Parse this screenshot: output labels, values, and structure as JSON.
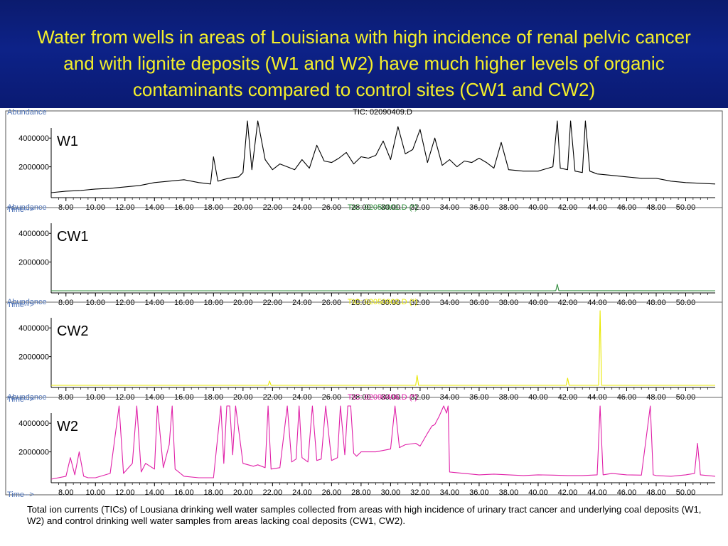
{
  "header": {
    "title": "Water from wells in areas of Louisiana with high incidence of renal pelvic cancer and with lignite deposits (W1 and W2) have much higher levels of organic contaminants compared to control sites (CW1 and CW2)",
    "background_color": "#0d1f84",
    "title_color": "#f4ef2a"
  },
  "caption": "Total ion currents (TICs) of Lousiana drinking well water samples collected from areas with high incidence of urinary tract cancer and underlying  coal deposits (W1, W2) and control  drinking well water samples from areas lacking coal deposits (CW1, CW2).",
  "chart_data": [
    {
      "type": "line",
      "panel_label": "W1",
      "file_label": "TIC: 02090409.D",
      "color": "#000000",
      "ylabel": "Abundance",
      "xlabel": "Time-->",
      "yticks": [
        "2000000",
        "4000000"
      ],
      "xticks": [
        "8.00",
        "10.00",
        "12.00",
        "14.00",
        "16.00",
        "18.00",
        "20.00",
        "22.00",
        "24.00",
        "26.00",
        "28.00",
        "30.00",
        "32.00",
        "34.00",
        "36.00",
        "38.00",
        "40.00",
        "42.00",
        "44.00",
        "46.00",
        "48.00",
        "50.00"
      ],
      "xlim": [
        7.0,
        52.0
      ],
      "ylim": [
        0,
        5200000
      ],
      "x": [
        7.0,
        8.0,
        9.0,
        10.0,
        11.0,
        12.0,
        13.0,
        14.0,
        15.0,
        16.0,
        17.0,
        17.8,
        18.0,
        18.3,
        19.0,
        19.7,
        20.0,
        20.3,
        20.6,
        21.0,
        21.5,
        22.0,
        22.5,
        23.0,
        23.5,
        24.0,
        24.5,
        25.0,
        25.5,
        26.0,
        26.5,
        27.0,
        27.5,
        28.0,
        28.5,
        29.0,
        29.5,
        30.0,
        30.5,
        31.0,
        31.5,
        32.0,
        32.5,
        33.0,
        33.5,
        34.0,
        34.5,
        35.0,
        35.5,
        36.0,
        36.5,
        37.0,
        37.5,
        38.0,
        39.0,
        40.0,
        41.0,
        41.3,
        41.5,
        42.0,
        42.2,
        42.5,
        43.0,
        43.2,
        43.5,
        44.0,
        45.0,
        46.0,
        47.0,
        48.0,
        49.0,
        50.0,
        51.0,
        52.0
      ],
      "y": [
        200000,
        300000,
        350000,
        450000,
        500000,
        600000,
        700000,
        900000,
        1000000,
        1100000,
        900000,
        800000,
        2700000,
        1000000,
        1200000,
        1300000,
        1600000,
        5200000,
        1800000,
        5200000,
        2500000,
        1800000,
        2200000,
        2000000,
        1800000,
        2500000,
        1900000,
        3500000,
        2400000,
        2300000,
        2600000,
        3000000,
        2200000,
        2700000,
        2600000,
        2800000,
        3800000,
        2500000,
        4800000,
        2900000,
        3200000,
        4600000,
        2300000,
        4000000,
        2100000,
        2500000,
        2000000,
        2400000,
        2300000,
        2600000,
        2300000,
        1900000,
        3700000,
        1800000,
        1700000,
        1700000,
        2000000,
        5200000,
        1900000,
        1800000,
        5200000,
        1700000,
        1600000,
        5200000,
        1700000,
        1500000,
        1400000,
        1300000,
        1200000,
        1200000,
        1000000,
        900000,
        850000,
        800000
      ]
    },
    {
      "type": "line",
      "panel_label": "CW1",
      "file_label": "TIC: 02050901.D (*)",
      "color": "#2e8b3a",
      "ylabel": "Abundance",
      "xlabel": "Time-->",
      "yticks": [
        "2000000",
        "4000000"
      ],
      "xticks": [
        "8.00",
        "10.00",
        "12.00",
        "14.00",
        "16.00",
        "18.00",
        "20.00",
        "22.00",
        "24.00",
        "26.00",
        "28.00",
        "30.00",
        "32.00",
        "34.00",
        "36.00",
        "38.00",
        "40.00",
        "42.00",
        "44.00",
        "46.00",
        "48.00",
        "50.00"
      ],
      "xlim": [
        7.0,
        52.0
      ],
      "ylim": [
        0,
        5200000
      ],
      "x": [
        7.0,
        41.0,
        41.2,
        41.3,
        41.4,
        52.0
      ],
      "y": [
        0,
        0,
        10000,
        450000,
        10000,
        0
      ]
    },
    {
      "type": "line",
      "panel_label": "CW2",
      "file_label": "TIC: 02050902.D (*)",
      "color": "#e8e800",
      "ylabel": "Abundance",
      "xlabel": "Time-->",
      "yticks": [
        "2000000",
        "4000000"
      ],
      "xticks": [
        "8.00",
        "10.00",
        "12.00",
        "14.00",
        "16.00",
        "18.00",
        "20.00",
        "22.00",
        "24.00",
        "26.00",
        "28.00",
        "30.00",
        "32.00",
        "34.00",
        "36.00",
        "38.00",
        "40.00",
        "42.00",
        "44.00",
        "46.00",
        "48.00",
        "50.00"
      ],
      "xlim": [
        7.0,
        52.0
      ],
      "ylim": [
        0,
        5200000
      ],
      "x": [
        7.0,
        21.7,
        21.8,
        21.9,
        31.7,
        31.8,
        31.9,
        41.9,
        42.0,
        42.1,
        44.1,
        44.2,
        44.3,
        52.0
      ],
      "y": [
        0,
        0,
        300000,
        0,
        0,
        700000,
        0,
        0,
        500000,
        0,
        0,
        5800000,
        0,
        0
      ]
    },
    {
      "type": "line",
      "panel_label": "W2",
      "file_label": "TIC: 02090406.D (*)",
      "color": "#e020a8",
      "ylabel": "Abundance",
      "xlabel": "Time-->",
      "yticks": [
        "2000000",
        "4000000"
      ],
      "xticks": [
        "8.00",
        "10.00",
        "12.00",
        "14.00",
        "16.00",
        "18.00",
        "20.00",
        "22.00",
        "24.00",
        "26.00",
        "28.00",
        "30.00",
        "32.00",
        "34.00",
        "36.00",
        "38.00",
        "40.00",
        "42.00",
        "44.00",
        "46.00",
        "48.00",
        "50.00"
      ],
      "xlim": [
        7.0,
        52.0
      ],
      "ylim": [
        0,
        5200000
      ],
      "x": [
        7.0,
        8.0,
        8.3,
        8.6,
        8.9,
        9.2,
        9.5,
        10.0,
        11.0,
        11.6,
        11.9,
        12.5,
        12.8,
        13.1,
        13.4,
        14.0,
        14.2,
        14.6,
        15.0,
        15.2,
        15.4,
        16.0,
        17.0,
        18.0,
        18.5,
        18.7,
        18.9,
        19.1,
        19.3,
        19.5,
        20.0,
        20.7,
        21.0,
        21.5,
        21.7,
        21.9,
        22.5,
        23.0,
        23.3,
        23.6,
        23.8,
        24.0,
        24.4,
        24.7,
        25.0,
        25.3,
        25.6,
        26.0,
        26.4,
        26.6,
        26.9,
        27.1,
        27.3,
        27.5,
        27.7,
        28.0,
        29.0,
        30.0,
        30.3,
        30.6,
        31.0,
        31.7,
        32.0,
        32.5,
        32.8,
        33.0,
        33.3,
        33.6,
        33.8,
        33.9,
        34.0,
        35.0,
        36.0,
        37.0,
        38.0,
        39.0,
        40.0,
        41.0,
        42.0,
        43.0,
        44.0,
        44.2,
        44.4,
        45.0,
        46.0,
        47.0,
        47.6,
        47.8,
        48.0,
        49.0,
        50.0,
        50.6,
        50.8,
        51.0,
        52.0
      ],
      "y": [
        100000,
        300000,
        1600000,
        400000,
        2000000,
        300000,
        200000,
        200000,
        500000,
        5200000,
        500000,
        1200000,
        5200000,
        600000,
        1200000,
        800000,
        5200000,
        900000,
        2500000,
        5200000,
        800000,
        300000,
        200000,
        200000,
        5200000,
        1200000,
        5200000,
        5200000,
        1800000,
        5200000,
        1200000,
        1000000,
        1100000,
        900000,
        5200000,
        800000,
        900000,
        5200000,
        1300000,
        1500000,
        5200000,
        1600000,
        1300000,
        5200000,
        1400000,
        1500000,
        5200000,
        1400000,
        1600000,
        5200000,
        1800000,
        5200000,
        5200000,
        1900000,
        1700000,
        2000000,
        2000000,
        2200000,
        5200000,
        2300000,
        2500000,
        2600000,
        2400000,
        3300000,
        3800000,
        3900000,
        4500000,
        5200000,
        4700000,
        5200000,
        600000,
        500000,
        400000,
        450000,
        400000,
        350000,
        400000,
        380000,
        350000,
        350000,
        400000,
        5200000,
        400000,
        500000,
        400000,
        380000,
        5200000,
        400000,
        350000,
        300000,
        400000,
        500000,
        2600000,
        400000,
        300000
      ]
    }
  ]
}
